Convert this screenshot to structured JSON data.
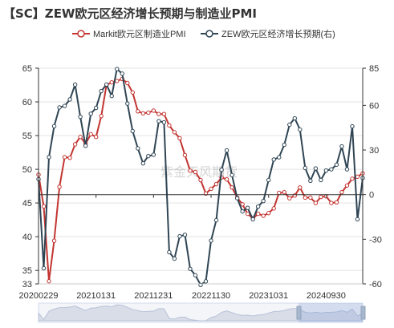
{
  "title": "【SC】ZEW欧元区经济增长预期与制造业PMI",
  "watermark": "紫金天风期货",
  "chart_data": {
    "type": "line",
    "title": "【SC】ZEW欧元区经济增长预期与制造业PMI",
    "x_tick_labels": [
      "20200229",
      "20210131",
      "20211231",
      "20221130",
      "20231031",
      "20240930"
    ],
    "x_tick_index": [
      0,
      11,
      22,
      33,
      44,
      55
    ],
    "left_axis": {
      "ylim": [
        33,
        65
      ],
      "ticks": [
        33,
        35,
        40,
        45,
        50,
        55,
        60,
        65
      ]
    },
    "right_axis": {
      "ylim": [
        -60,
        85
      ],
      "ticks": [
        -60,
        -30,
        0,
        30,
        60,
        85
      ]
    },
    "legend_position": "top",
    "grid": true,
    "series": [
      {
        "name": "Markit欧元区制造业PMI",
        "axis": "left",
        "color": "#c23531",
        "values": [
          49.2,
          44.5,
          33.4,
          39.4,
          47.4,
          51.8,
          51.7,
          53.7,
          54.8,
          53.8,
          55.2,
          54.8,
          57.9,
          62.5,
          62.9,
          63.1,
          63.4,
          62.8,
          61.4,
          58.6,
          58.3,
          58.4,
          58.7,
          58.2,
          58.2,
          56.5,
          55.5,
          54.6,
          52.1,
          49.8,
          49.6,
          48.4,
          46.4,
          47.1,
          47.8,
          48.8,
          48.5,
          47.3,
          45.8,
          44.8,
          43.4,
          42.7,
          43.4,
          43.1,
          43.5,
          44.2,
          46.5,
          46.6,
          45.7,
          46.1,
          47.3,
          45.8,
          45.8,
          45.0,
          45.9,
          46.0,
          45.0,
          45.1,
          46.6,
          47.6,
          48.6,
          48.9,
          49.4
        ]
      },
      {
        "name": "ZEW欧元区经济增长预期(右)",
        "axis": "right",
        "color": "#2f4554",
        "values": [
          10.4,
          -49.5,
          25.2,
          46.0,
          58.6,
          59.6,
          64.0,
          73.9,
          52.3,
          32.8,
          54.4,
          58.3,
          69.6,
          74.0,
          66.3,
          84.4,
          81.3,
          61.2,
          42.7,
          31.1,
          21.0,
          25.9,
          26.8,
          49.4,
          48.6,
          -38.7,
          -43.0,
          -28.0,
          -27.0,
          -49.9,
          -54.2,
          -60.7,
          -58.3,
          -30.9,
          -17.2,
          16.7,
          29.7,
          13.1,
          -2.4,
          -11.3,
          -8.9,
          -16.6,
          -8.0,
          -4.3,
          9.8,
          23.6,
          25.1,
          33.5,
          47.0,
          51.3,
          43.7,
          17.9,
          9.3,
          17.6,
          9.8,
          16.2,
          17.0,
          20.1,
          32.4,
          17.0,
          45.9,
          -16.6,
          11.2
        ]
      }
    ]
  }
}
